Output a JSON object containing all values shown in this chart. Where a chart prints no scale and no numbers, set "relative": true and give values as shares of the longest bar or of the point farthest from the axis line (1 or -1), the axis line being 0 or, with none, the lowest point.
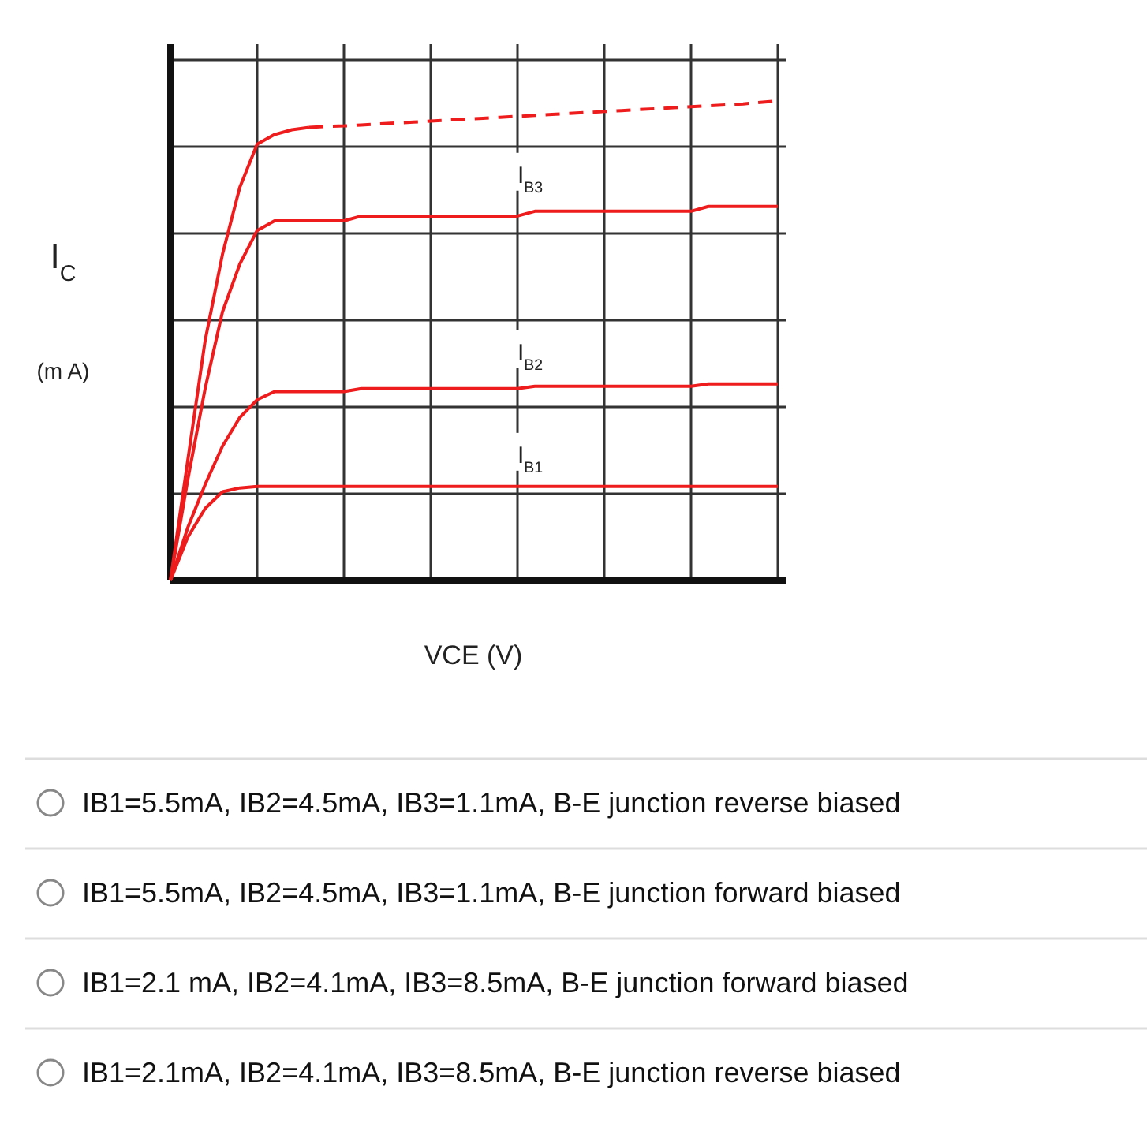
{
  "chart_data": [
    {
      "type": "line",
      "relative": true,
      "xlabel": "VCE (V)",
      "ylabel": "I$_{C}$\n(m A)",
      "categories": [
        null,
        null,
        null,
        null,
        null,
        null,
        null,
        null,
        null,
        null,
        null,
        null,
        null,
        null,
        null,
        null,
        null,
        null,
        null,
        null,
        null,
        null,
        null,
        null,
        null,
        null,
        null,
        null,
        null,
        null,
        null,
        null,
        null,
        null,
        null,
        null
      ],
      "grid": true,
      "series": [
        {
          "color": "#ee1c1c",
          "line_style": "solid",
          "values": [
            0,
            0.25,
            0.5,
            0.68,
            0.82,
            0.91,
            0.93,
            0.94,
            0.945,
            null,
            null,
            null,
            null,
            null,
            null,
            null,
            null,
            null,
            null,
            null,
            null,
            null,
            null,
            null,
            null,
            null,
            null,
            null,
            null,
            null,
            null,
            null,
            null,
            null,
            null,
            null
          ]
        },
        {
          "color": "#ee1c1c",
          "line_style": "dashed",
          "values": [
            null,
            null,
            null,
            null,
            null,
            null,
            null,
            null,
            0.945,
            0.947,
            0.948,
            0.95,
            0.952,
            0.954,
            0.956,
            0.958,
            0.96,
            0.962,
            0.964,
            0.966,
            0.968,
            0.97,
            0.972,
            0.974,
            0.976,
            0.978,
            0.98,
            0.982,
            0.984,
            0.986,
            0.988,
            0.99,
            0.992,
            0.994,
            0.997,
            1
          ]
        },
        {
          "name": "I$_{B3}$",
          "color": "#ee1c1c",
          "line_style": "solid",
          "values": [
            0,
            0.21,
            0.4,
            0.56,
            0.66,
            0.73,
            0.75,
            0.75,
            0.75,
            0.75,
            0.75,
            0.76,
            0.76,
            0.76,
            0.76,
            0.76,
            0.76,
            0.76,
            0.76,
            0.76,
            0.76,
            0.77,
            0.77,
            0.77,
            0.77,
            0.77,
            0.77,
            0.77,
            0.77,
            0.77,
            0.77,
            0.78,
            0.78,
            0.78,
            0.78,
            0.78
          ]
        },
        {
          "name": "I$_{B2}$",
          "color": "#ee1c1c",
          "line_style": "solid",
          "values": [
            0,
            0.11,
            0.2,
            0.28,
            0.34,
            0.377,
            0.394,
            0.394,
            0.394,
            0.394,
            0.394,
            0.4,
            0.4,
            0.4,
            0.4,
            0.4,
            0.4,
            0.4,
            0.4,
            0.4,
            0.4,
            0.405,
            0.405,
            0.405,
            0.405,
            0.405,
            0.405,
            0.405,
            0.405,
            0.405,
            0.405,
            0.41,
            0.41,
            0.41,
            0.41,
            0.41
          ]
        },
        {
          "name": "I$_{B1}$",
          "color": "#ee1c1c",
          "line_style": "solid",
          "values": [
            0,
            0.09,
            0.15,
            0.185,
            0.193,
            0.196,
            0.196,
            0.196,
            0.196,
            0.196,
            0.196,
            0.196,
            0.196,
            0.196,
            0.196,
            0.196,
            0.196,
            0.196,
            0.196,
            0.196,
            0.196,
            0.196,
            0.196,
            0.196,
            0.196,
            0.196,
            0.196,
            0.196,
            0.196,
            0.196,
            0.196,
            0.196,
            0.196,
            0.196,
            0.196,
            0.196
          ]
        }
      ]
    },
    {
      "type": "other",
      "annotations": [
        "IB1=5.5mA, IB2=4.5mA, IB3=1.1mA, B-E junction reverse biased",
        "IB1=5.5mA, IB2=4.5mA, IB3=1.1mA, B-E junction forward biased",
        "IB1=2.1 mA, IB2=4.1mA, IB3=8.5mA, B-E junction forward biased",
        "IB1=2.1mA, IB2=4.1mA, IB3=8.5mA, B-E junction reverse biased"
      ]
    }
  ]
}
